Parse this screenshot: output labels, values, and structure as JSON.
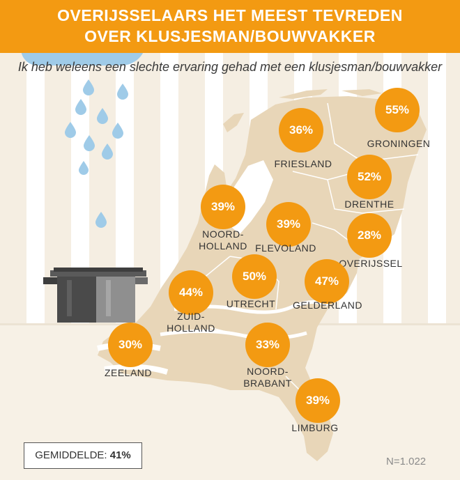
{
  "header": {
    "title_line1": "OVERIJSSELAARS HET MEEST TEVREDEN",
    "title_line2": "OVER KLUSJESMAN/BOUWVAKKER"
  },
  "subtitle": "Ik heb weleens een slechte ervaring gehad met een klusjesman/bouwvakker",
  "colors": {
    "accent": "#f39a12",
    "map": "#e8d6b8",
    "water": "#9fcbe8",
    "stripe": "#f5eee2"
  },
  "provinces": [
    {
      "name_line1": "GRONINGEN",
      "name_line2": "",
      "value": "55%"
    },
    {
      "name_line1": "FRIESLAND",
      "name_line2": "",
      "value": "36%"
    },
    {
      "name_line1": "DRENTHE",
      "name_line2": "",
      "value": "52%"
    },
    {
      "name_line1": "NOORD-",
      "name_line2": "HOLLAND",
      "value": "39%"
    },
    {
      "name_line1": "FLEVOLAND",
      "name_line2": "",
      "value": "39%"
    },
    {
      "name_line1": "OVERIJSSEL",
      "name_line2": "",
      "value": "28%"
    },
    {
      "name_line1": "UTRECHT",
      "name_line2": "",
      "value": "50%"
    },
    {
      "name_line1": "GELDERLAND",
      "name_line2": "",
      "value": "47%"
    },
    {
      "name_line1": "ZUID-",
      "name_line2": "HOLLAND",
      "value": "44%"
    },
    {
      "name_line1": "ZEELAND",
      "name_line2": "",
      "value": "30%"
    },
    {
      "name_line1": "NOORD-",
      "name_line2": "BRABANT",
      "value": "33%"
    },
    {
      "name_line1": "LIMBURG",
      "name_line2": "",
      "value": "39%"
    }
  ],
  "footer": {
    "average_label": "GEMIDDELDE:",
    "average_value": "41%",
    "sample": "N=1.022"
  },
  "icons": [
    "water-drop-icon",
    "cooking-pot-icon",
    "netherlands-map"
  ]
}
